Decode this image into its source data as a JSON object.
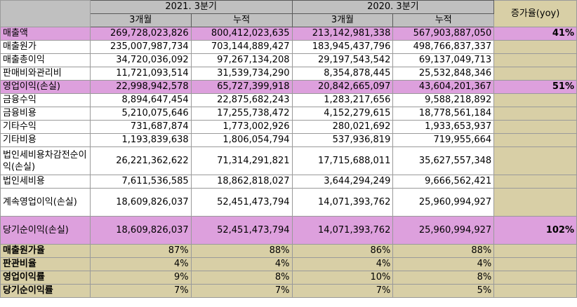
{
  "header": {
    "period_2021": "2021. 3분기",
    "period_2020": "2020. 3분기",
    "three_month": "3개월",
    "cumulative": "누적",
    "growth": "증가율(yoy)"
  },
  "rows": [
    {
      "label": "매출액",
      "v": [
        "269,728,023,826",
        "800,412,023,635",
        "213,142,981,338",
        "567,903,887,050"
      ],
      "yoy": "41%",
      "hi": true
    },
    {
      "label": "매출원가",
      "v": [
        "235,007,987,734",
        "703,144,889,427",
        "183,945,437,796",
        "498,766,837,337"
      ],
      "yoy": ""
    },
    {
      "label": "매출총이익",
      "v": [
        "34,720,036,092",
        "97,267,134,208",
        "29,197,543,542",
        "69,137,049,713"
      ],
      "yoy": ""
    },
    {
      "label": "판매비와관리비",
      "v": [
        "11,721,093,514",
        "31,539,734,290",
        "8,354,878,445",
        "25,532,848,346"
      ],
      "yoy": ""
    },
    {
      "label": "영업이익(손실)",
      "v": [
        "22,998,942,578",
        "65,727,399,918",
        "20,842,665,097",
        "43,604,201,367"
      ],
      "yoy": "51%",
      "hi": true
    },
    {
      "label": "금융수익",
      "v": [
        "8,894,647,454",
        "22,875,682,243",
        "1,283,217,656",
        "9,588,218,892"
      ],
      "yoy": ""
    },
    {
      "label": "금융비용",
      "v": [
        "5,210,075,646",
        "17,255,738,472",
        "4,152,279,615",
        "18,778,561,184"
      ],
      "yoy": ""
    },
    {
      "label": "기타수익",
      "v": [
        "731,687,874",
        "1,773,002,926",
        "280,021,692",
        "1,933,653,937"
      ],
      "yoy": ""
    },
    {
      "label": "기타비용",
      "v": [
        "1,193,839,638",
        "1,806,054,794",
        "537,936,819",
        "719,955,664"
      ],
      "yoy": ""
    },
    {
      "label": "법인세비용차감전순이익(손실)",
      "v": [
        "26,221,362,622",
        "71,314,291,821",
        "17,715,688,011",
        "35,627,557,348"
      ],
      "yoy": "",
      "tall": true
    },
    {
      "label": "법인세비용",
      "v": [
        "7,611,536,585",
        "18,862,818,027",
        "3,644,294,249",
        "9,666,562,421"
      ],
      "yoy": ""
    },
    {
      "label": "계속영업이익(손실)",
      "v": [
        "18,609,826,037",
        "52,451,473,794",
        "14,071,393,762",
        "25,960,994,927"
      ],
      "yoy": "",
      "tall": true
    },
    {
      "label": "당기순이익(손실)",
      "v": [
        "18,609,826,037",
        "52,451,473,794",
        "14,071,393,762",
        "25,960,994,927"
      ],
      "yoy": "102%",
      "hi": true,
      "tall": true
    }
  ],
  "ratios": [
    {
      "label": "매출원가율",
      "v": [
        "87%",
        "88%",
        "86%",
        "88%"
      ]
    },
    {
      "label": "판관비율",
      "v": [
        "4%",
        "4%",
        "4%",
        "4%"
      ]
    },
    {
      "label": "영업이익률",
      "v": [
        "9%",
        "8%",
        "10%",
        "8%"
      ]
    },
    {
      "label": "당기순이익률",
      "v": [
        "7%",
        "7%",
        "7%",
        "5%"
      ]
    }
  ]
}
